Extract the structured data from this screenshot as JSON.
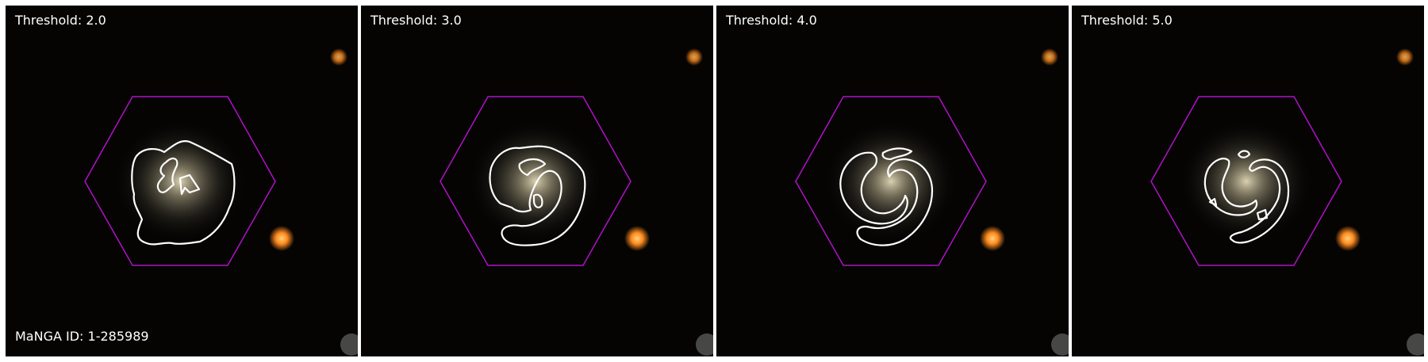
{
  "panels": [
    {
      "label": "Threshold: 2.0"
    },
    {
      "label": "Threshold: 3.0"
    },
    {
      "label": "Threshold: 4.0"
    },
    {
      "label": "Threshold: 5.0"
    }
  ],
  "manga_id": "MaNGA ID: 1-285989",
  "colors": {
    "background": "#050403",
    "hexagon": "#b010c8",
    "contour": "#ffffff",
    "galaxy_core": "#d8d0b0",
    "star": "#ff8a1e"
  }
}
